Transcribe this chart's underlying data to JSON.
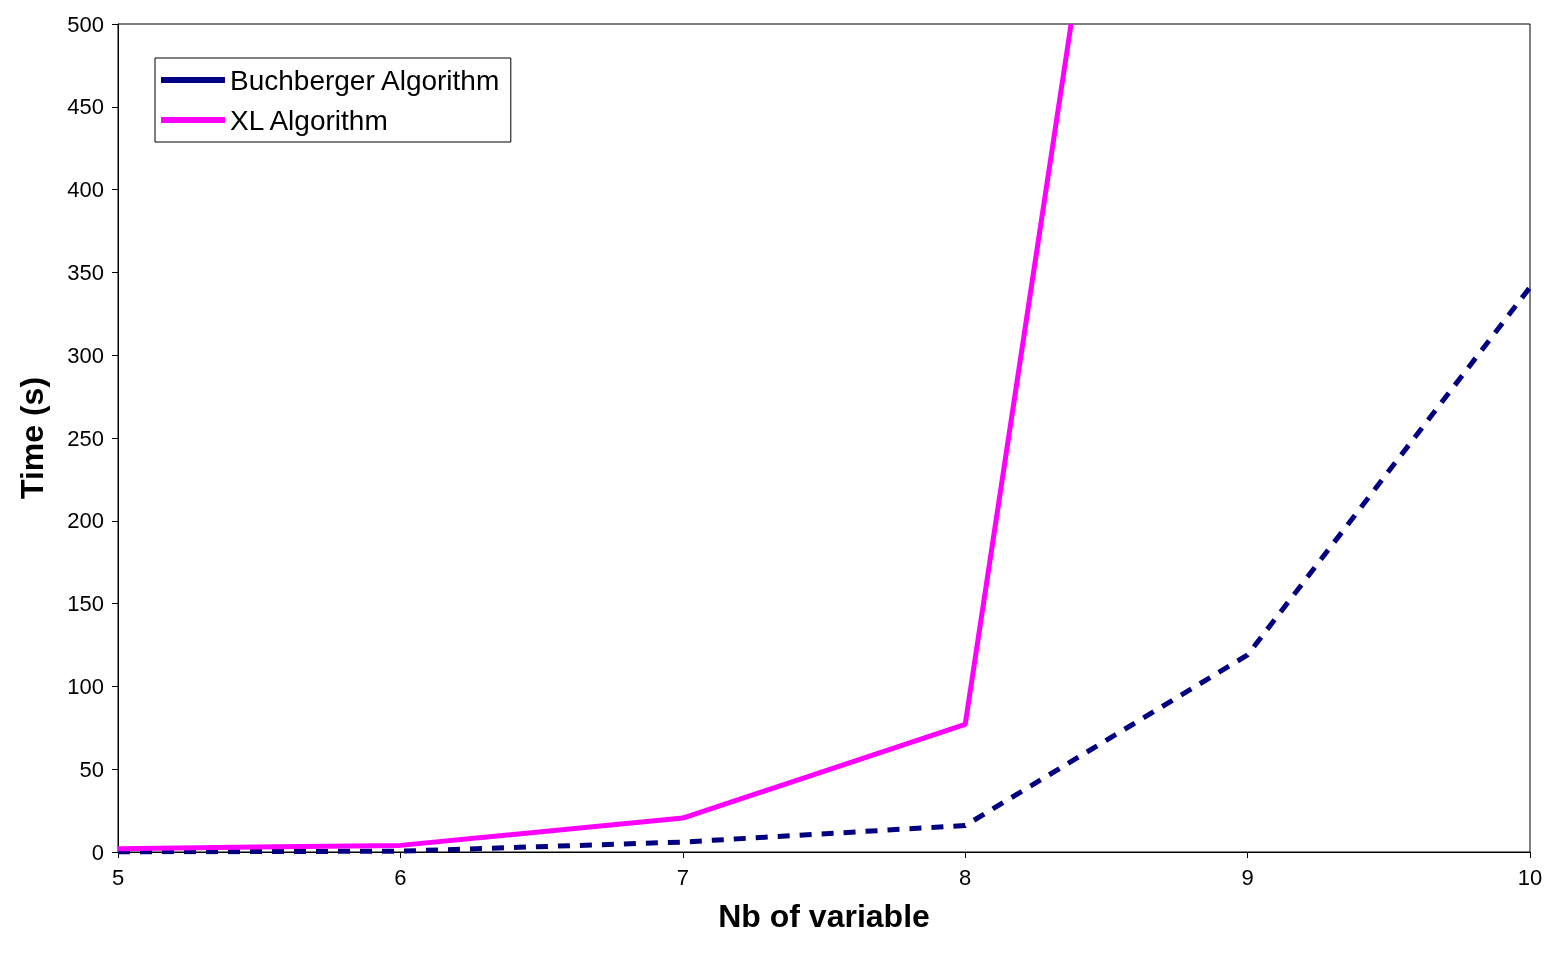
{
  "chart_data": {
    "type": "line",
    "xlabel": "Nb of variable",
    "ylabel": "Time (s)",
    "xlim": [
      5,
      10
    ],
    "xticks": [
      5,
      6,
      7,
      8,
      9,
      10
    ],
    "ylim": [
      0,
      500
    ],
    "yticks": [
      0,
      50,
      100,
      150,
      200,
      250,
      300,
      350,
      400,
      450,
      500
    ],
    "grid": false,
    "legend": "top left",
    "marker": "none",
    "series": [
      {
        "name": "Buchberger Algorithm",
        "color": "#000080",
        "line_style": "dashed",
        "x": [
          5,
          6,
          7,
          8,
          9,
          10
        ],
        "values": [
          0,
          0.5,
          6,
          16,
          119,
          341
        ]
      },
      {
        "name": "XL Algorithm",
        "color": "#ff00ff",
        "line_style": "solid",
        "x": [
          5,
          6,
          7,
          8,
          8.375
        ],
        "values": [
          2,
          4,
          20.5,
          77,
          500
        ]
      }
    ]
  }
}
